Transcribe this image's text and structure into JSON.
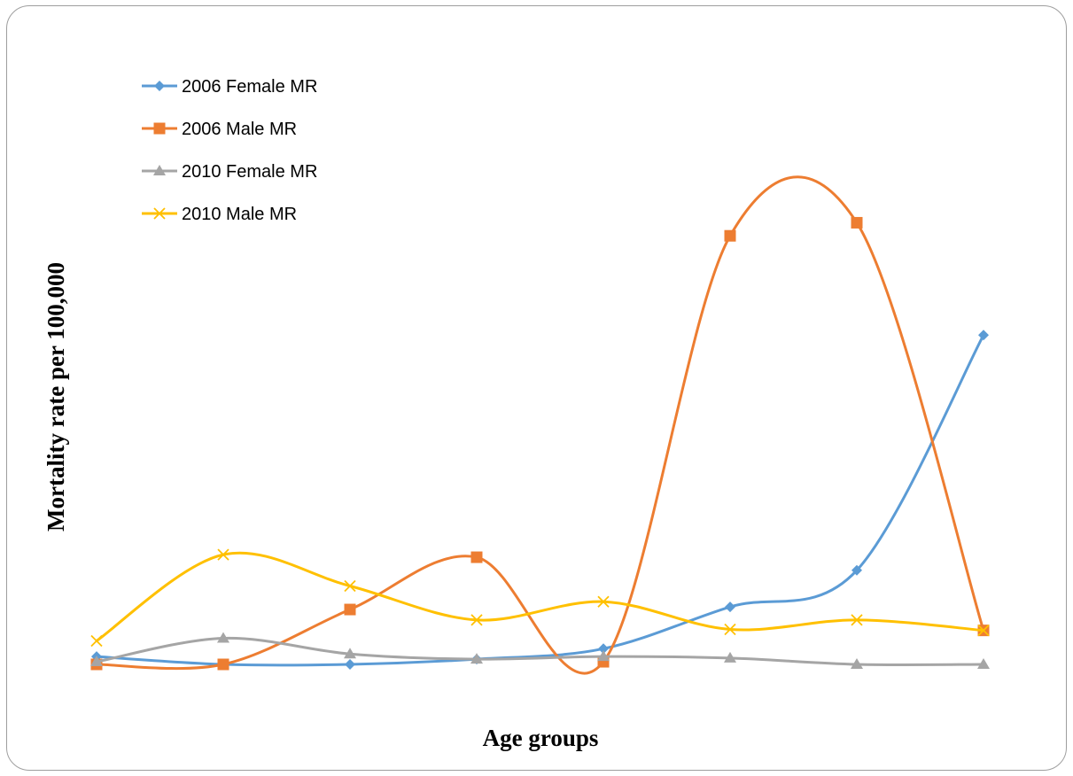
{
  "chart_data": {
    "type": "line",
    "smooth": true,
    "title": "",
    "xlabel": "Age groups",
    "ylabel": "Mortality rate per 100,000",
    "categories": [
      "1",
      "2",
      "3",
      "4",
      "5",
      "6",
      "7",
      "8"
    ],
    "show_category_labels": false,
    "ylim": [
      0,
      100
    ],
    "grid": false,
    "legend_position": "top-left",
    "series": [
      {
        "name": "2006 Female MR",
        "color": "#5b9bd5",
        "marker": "diamond",
        "values": [
          1.5,
          0,
          0,
          1,
          3,
          11,
          18,
          63
        ]
      },
      {
        "name": "2006 Male MR",
        "color": "#ed7d31",
        "marker": "square",
        "values": [
          0,
          0,
          10.5,
          20.5,
          0.5,
          82,
          84.5,
          6.5
        ]
      },
      {
        "name": "2010 Female MR",
        "color": "#a5a5a5",
        "marker": "triangle",
        "values": [
          0.5,
          5,
          2,
          1,
          1.5,
          1.2,
          0,
          0
        ]
      },
      {
        "name": "2010 Male MR",
        "color": "#ffc000",
        "marker": "x",
        "values": [
          4.5,
          21,
          15,
          8.5,
          12,
          6.7,
          8.5,
          6.5
        ]
      }
    ]
  }
}
